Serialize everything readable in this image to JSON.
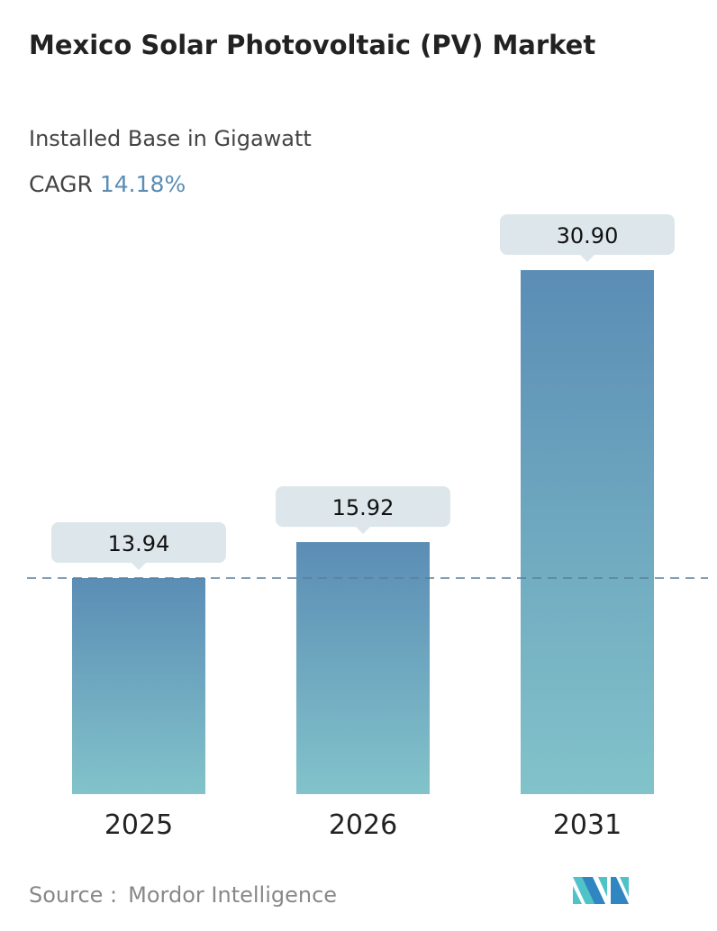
{
  "title": "Mexico Solar Photovoltaic (PV) Market",
  "subtitle": "Installed Base in Gigawatt",
  "cagr_label": "CAGR",
  "cagr_value": "14.18%",
  "source_label": "Source :",
  "source_value": "Mordor Intelligence",
  "logo_text": "Mordor Intelligence",
  "colors": {
    "bar_top": "#5b8db5",
    "bar_bottom": "#82c3ca",
    "label_box": "#dde6ea",
    "dash": "#5b7f9c",
    "cagr": "#5b8db5"
  },
  "chart_data": {
    "type": "bar",
    "categories": [
      "2025",
      "2026",
      "2031"
    ],
    "values": [
      13.94,
      15.92,
      30.9
    ],
    "data_labels": [
      "13.94",
      "15.92",
      "30.90"
    ],
    "xlabel": "",
    "ylabel": "",
    "grid": false,
    "reference_line": "dashed horizontal line at the 2025 value"
  }
}
